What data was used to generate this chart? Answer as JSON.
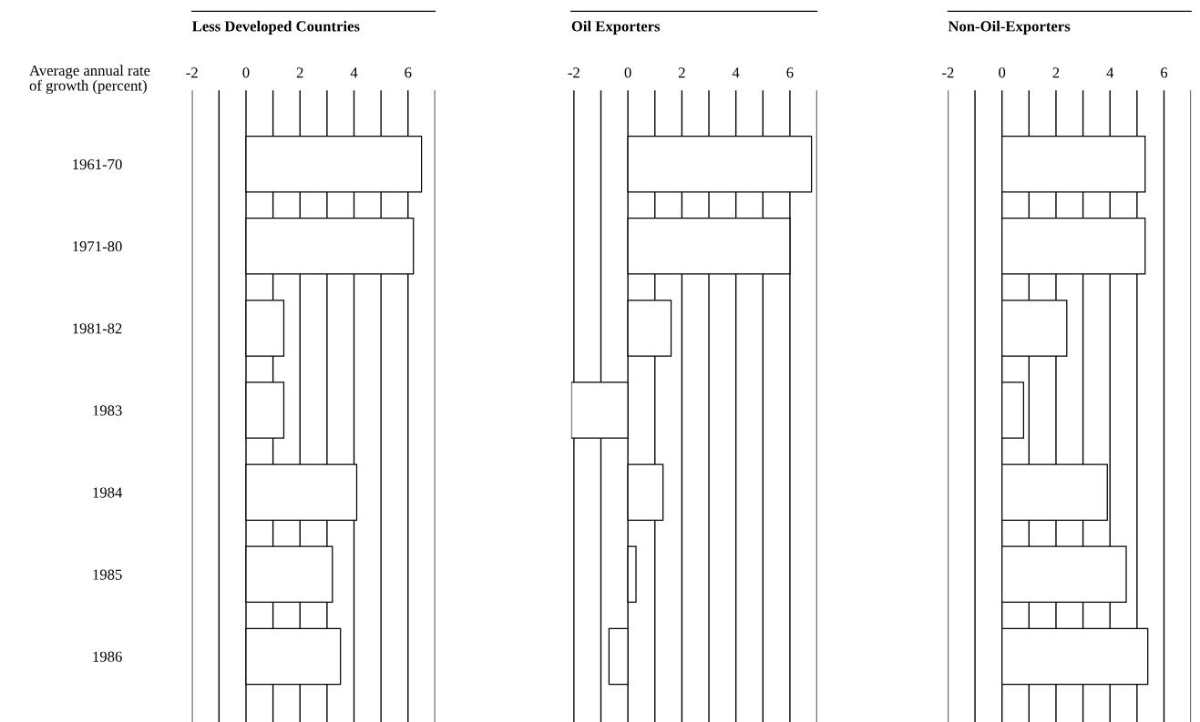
{
  "chart_data": [
    {
      "type": "bar",
      "orientation": "horizontal",
      "title": "Less Developed Countries",
      "annotations": [
        "Average annual rate\nof growth (percent)"
      ],
      "categories": [
        "1961-70",
        "1971-80",
        "1981-82",
        "1983",
        "1984",
        "1985",
        "1986"
      ],
      "values": [
        6.5,
        6.2,
        1.4,
        1.4,
        4.1,
        3.2,
        3.5
      ],
      "color": "#ffffff",
      "xlim": [
        -2,
        7
      ],
      "xticks": [
        -2,
        {
          "value": -1,
          "label": null
        },
        0,
        {
          "value": 1,
          "label": null
        },
        2,
        {
          "value": 3,
          "label": null
        },
        4,
        {
          "value": 5,
          "label": null
        },
        6,
        {
          "value": 7,
          "label": null
        }
      ],
      "grid": "x"
    },
    {
      "type": "bar",
      "orientation": "horizontal",
      "title": "Oil Exporters",
      "categories": [
        "1961-70",
        "1971-80",
        "1981-82",
        "1983",
        "1984",
        "1985",
        "1986"
      ],
      "values": [
        6.8,
        6.0,
        1.6,
        -2.1,
        1.3,
        0.3,
        -0.7
      ],
      "color": "#ffffff",
      "xlim": [
        -2.1,
        7
      ],
      "xticks": [
        -2,
        {
          "value": -1,
          "label": null
        },
        0,
        {
          "value": 1,
          "label": null
        },
        2,
        {
          "value": 3,
          "label": null
        },
        4,
        {
          "value": 5,
          "label": null
        },
        6,
        {
          "value": 7,
          "label": null
        }
      ],
      "grid": "x",
      "tick_labels": "x"
    },
    {
      "type": "bar",
      "orientation": "horizontal",
      "title": "Non-Oil-Exporters",
      "categories": [
        "1961-70",
        "1971-80",
        "1981-82",
        "1983",
        "1984",
        "1985",
        "1986"
      ],
      "values": [
        5.3,
        5.3,
        2.4,
        0.8,
        3.9,
        4.6,
        5.4
      ],
      "color": "#ffffff",
      "xlim": [
        -2,
        7
      ],
      "xticks": [
        -2,
        {
          "value": -1,
          "label": null
        },
        0,
        {
          "value": 1,
          "label": null
        },
        2,
        {
          "value": 3,
          "label": null
        },
        4,
        {
          "value": 5,
          "label": null
        },
        6,
        {
          "value": 7,
          "label": null
        }
      ],
      "grid": "x",
      "tick_labels": "x"
    }
  ]
}
